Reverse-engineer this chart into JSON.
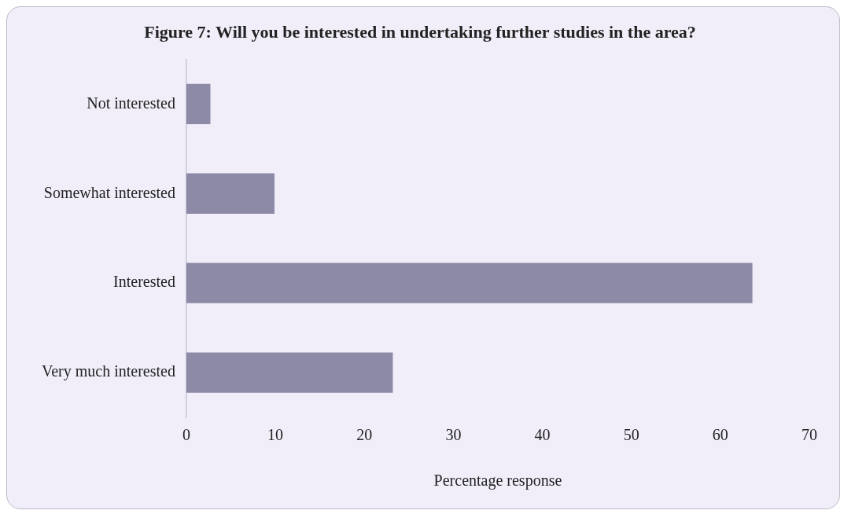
{
  "chart_data": {
    "type": "bar",
    "orientation": "horizontal",
    "title": "Figure 7: Will you be interested in undertaking further studies in the area?",
    "xlabel": "Percentage response",
    "categories": [
      "Not interested",
      "Somewhat interested",
      "Interested",
      "Very much interested"
    ],
    "values": [
      2.7,
      9.9,
      63.6,
      23.2
    ],
    "color": "#8c8aa6",
    "xlim": [
      0,
      70
    ],
    "xticks": [
      0,
      10,
      20,
      30,
      40,
      50,
      60,
      70
    ],
    "grid": false,
    "legend": false
  }
}
